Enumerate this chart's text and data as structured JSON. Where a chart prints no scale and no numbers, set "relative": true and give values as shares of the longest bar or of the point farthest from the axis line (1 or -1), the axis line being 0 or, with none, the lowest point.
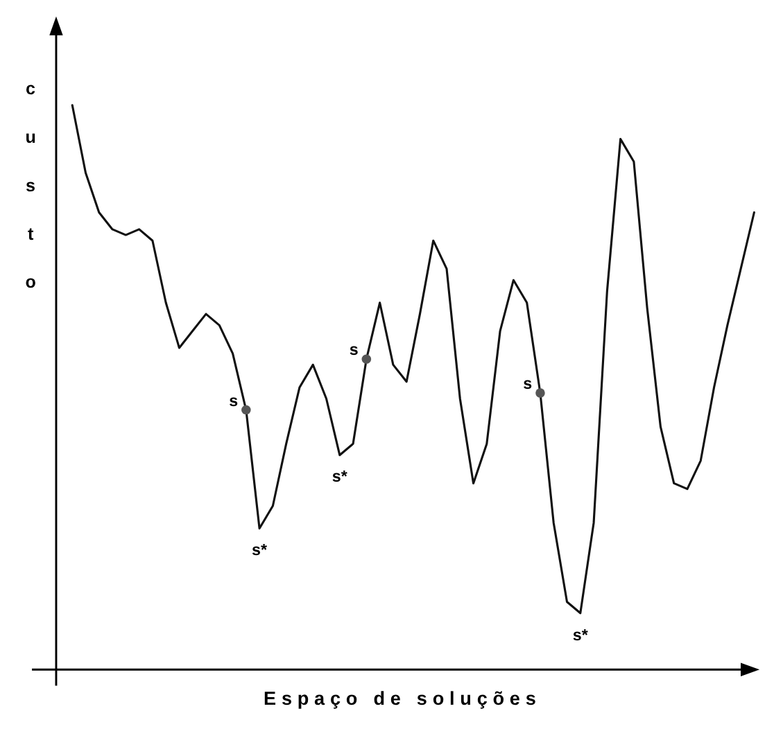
{
  "chart_data": {
    "type": "line",
    "relative": true,
    "xlabel": "Espaço de soluções",
    "ylabel": "custo",
    "line_style": "solid",
    "categories": [
      null,
      null,
      null,
      null,
      null,
      null,
      null,
      null,
      null,
      null,
      null,
      null,
      null,
      null,
      null,
      null,
      null,
      null,
      null,
      null,
      null,
      null,
      null,
      null,
      null,
      null,
      null,
      null,
      null,
      null,
      null,
      null,
      null,
      null,
      null,
      null,
      null,
      null,
      null,
      null,
      null,
      null,
      null,
      null,
      null,
      null,
      null,
      null,
      null,
      null,
      null,
      null
    ],
    "series": [
      {
        "color": "#111111",
        "values": [
          1.0,
          0.88,
          0.81,
          0.78,
          0.77,
          0.78,
          0.76,
          0.65,
          0.57,
          0.6,
          0.63,
          0.61,
          0.56,
          0.46,
          0.25,
          0.29,
          0.4,
          0.5,
          0.54,
          0.48,
          0.38,
          0.4,
          0.55,
          0.65,
          0.54,
          0.51,
          0.63,
          0.76,
          0.71,
          0.48,
          0.33,
          0.4,
          0.6,
          0.69,
          0.65,
          0.49,
          0.26,
          0.12,
          0.1,
          0.26,
          0.67,
          0.94,
          0.9,
          0.64,
          0.43,
          0.33,
          0.32,
          0.37,
          0.5,
          0.61,
          0.71,
          0.81
        ]
      }
    ],
    "annotations": [
      "s",
      "s*",
      "s",
      "s*",
      "s",
      "s*"
    ]
  }
}
